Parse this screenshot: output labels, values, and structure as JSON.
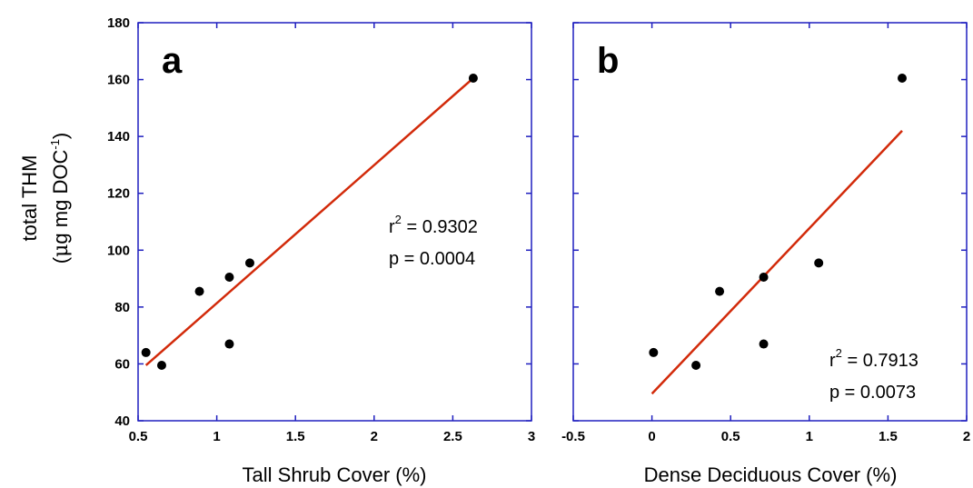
{
  "colors": {
    "frame": "#1f1fbf",
    "fit_line": "#d22a0a",
    "points": "#000000"
  },
  "y_axis": {
    "title": "total THM",
    "unit_open": "(",
    "unit_mu": "μ",
    "unit_main": "g mg DOC",
    "unit_sup": "-1",
    "unit_close": ")"
  },
  "chart_data": [
    {
      "type": "scatter",
      "panel_label": "a",
      "xlabel": "Tall Shrub Cover (%)",
      "xlim": [
        0.5,
        3
      ],
      "ylim": [
        40,
        180
      ],
      "x_ticks": [
        0.5,
        1,
        1.5,
        2,
        2.5,
        3
      ],
      "x_tick_labels": [
        "0.5",
        "1",
        "1.5",
        "2",
        "2.5",
        "3"
      ],
      "y_ticks": [
        40,
        60,
        80,
        100,
        120,
        140,
        160,
        180
      ],
      "y_tick_labels": [
        "40",
        "60",
        "80",
        "100",
        "120",
        "140",
        "160",
        "180"
      ],
      "x": [
        0.55,
        0.65,
        0.89,
        1.08,
        1.08,
        1.21,
        2.63
      ],
      "y": [
        64,
        59.5,
        85.5,
        90.5,
        67,
        95.5,
        160.5
      ],
      "fit_line": {
        "x": [
          0.55,
          2.63
        ],
        "y": [
          59.5,
          160.5
        ]
      },
      "annotation": {
        "r_label": "r",
        "r_sup": "2",
        "r_value": " = 0.9302",
        "p_text": "p = 0.0004"
      }
    },
    {
      "type": "scatter",
      "panel_label": "b",
      "xlabel": "Dense Deciduous Cover (%)",
      "xlim": [
        -0.5,
        2
      ],
      "ylim": [
        40,
        180
      ],
      "x_ticks": [
        -0.5,
        0,
        0.5,
        1,
        1.5,
        2
      ],
      "x_tick_labels": [
        "-0.5",
        "0",
        "0.5",
        "1",
        "1.5",
        "2"
      ],
      "y_ticks": [
        40,
        60,
        80,
        100,
        120,
        140,
        160,
        180
      ],
      "y_tick_labels": [],
      "x": [
        0.01,
        0.28,
        0.43,
        0.71,
        0.71,
        1.06,
        1.59
      ],
      "y": [
        64,
        59.5,
        85.5,
        90.5,
        67,
        95.5,
        160.5
      ],
      "fit_line": {
        "x": [
          0.0,
          1.59
        ],
        "y": [
          49.5,
          142
        ]
      },
      "annotation": {
        "r_label": "r",
        "r_sup": "2",
        "r_value": " = 0.7913",
        "p_text": "p = 0.0073"
      }
    }
  ]
}
